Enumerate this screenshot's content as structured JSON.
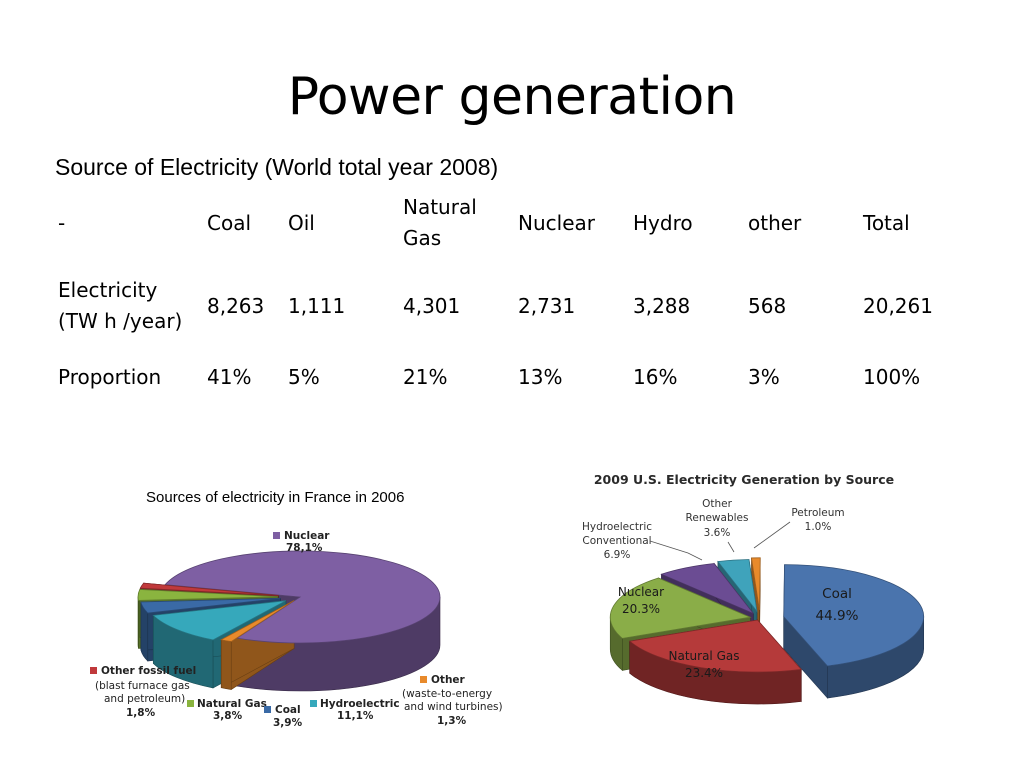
{
  "title": "Power generation",
  "table": {
    "caption": "Source of Electricity (World total year 2008)",
    "headers": [
      "-",
      "Coal",
      "Oil",
      "Natural Gas",
      "Nuclear",
      "Hydro",
      "other",
      "Total"
    ],
    "rows": [
      {
        "label": "Electricity (TW h /year)",
        "cells": [
          "8,263",
          "1,111",
          "4,301",
          "2,731",
          "3,288",
          "568",
          "20,261"
        ]
      },
      {
        "label": "Proportion",
        "cells": [
          "41%",
          "5%",
          "21%",
          "13%",
          "16%",
          "3%",
          "100%"
        ]
      }
    ]
  },
  "chart_data": [
    {
      "type": "pie",
      "title": "Sources of electricity in France in 2006",
      "slices": [
        {
          "name": "Nuclear",
          "value_label": "78,1%",
          "value": 78.1,
          "color": "#7e5fa3"
        },
        {
          "name": "Other",
          "note": "(waste-to-energy and wind turbines)",
          "value_label": "1,3%",
          "value": 1.3,
          "color": "#e88a2b"
        },
        {
          "name": "Hydroelectric",
          "value_label": "11,1%",
          "value": 11.1,
          "color": "#36a8bb"
        },
        {
          "name": "Coal",
          "value_label": "3,9%",
          "value": 3.9,
          "color": "#3a6aa6"
        },
        {
          "name": "Natural Gas",
          "value_label": "3,8%",
          "value": 3.8,
          "color": "#8ab43f"
        },
        {
          "name": "Other fossil fuel",
          "note": "(blast furnace gas and petroleum)",
          "value_label": "1,8%",
          "value": 1.8,
          "color": "#c0393b"
        }
      ]
    },
    {
      "type": "pie",
      "title": "2009 U.S. Electricity Generation by Source",
      "slices": [
        {
          "name": "Coal",
          "value_label": "44.9%",
          "value": 44.9,
          "color": "#4a74ad"
        },
        {
          "name": "Natural Gas",
          "value_label": "23.4%",
          "value": 23.4,
          "color": "#b53a3a"
        },
        {
          "name": "Nuclear",
          "value_label": "20.3%",
          "value": 20.3,
          "color": "#8aad48"
        },
        {
          "name": "Hydroelectric Conventional",
          "value_label": "6.9%",
          "value": 6.9,
          "color": "#6b4c93"
        },
        {
          "name": "Other Renewables",
          "value_label": "3.6%",
          "value": 3.6,
          "color": "#3fa3bb"
        },
        {
          "name": "Petroleum",
          "value_label": "1.0%",
          "value": 1.0,
          "color": "#e88a2b"
        }
      ]
    }
  ]
}
